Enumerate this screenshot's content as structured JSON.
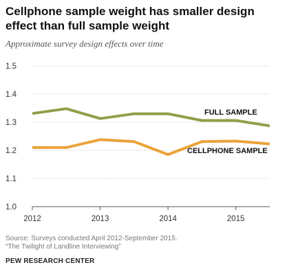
{
  "title": "Cellphone sample weight has smaller design effect than full sample weight",
  "subtitle": "Approximate survey design effects over time",
  "source_line1": "Source: Surveys conducted April 2012-September 2015.",
  "source_line2": "“The Twilight of Landline Interviewing”",
  "brand": "PEW RESEARCH CENTER",
  "chart_data": {
    "type": "line",
    "title": "Cellphone sample weight has smaller design effect than full sample weight",
    "subtitle": "Approximate survey design effects over time",
    "xlabel": "",
    "ylabel": "",
    "xlim": [
      2012.0,
      2015.5
    ],
    "ylim": [
      1.0,
      1.5
    ],
    "x_ticks": [
      2012,
      2013,
      2014,
      2015
    ],
    "y_ticks": [
      1.0,
      1.1,
      1.2,
      1.3,
      1.4,
      1.5
    ],
    "grid": "horizontal dotted",
    "legend": "direct labels on lines",
    "series": [
      {
        "name": "FULL SAMPLE",
        "color": "#8fa04a",
        "x": [
          2012.0,
          2012.5,
          2013.0,
          2013.5,
          2014.0,
          2014.5,
          2015.0,
          2015.5
        ],
        "values": [
          1.331,
          1.348,
          1.313,
          1.33,
          1.33,
          1.306,
          1.306,
          1.287
        ]
      },
      {
        "name": "CELLPHONE SAMPLE",
        "color": "#eba33a",
        "x": [
          2012.0,
          2012.5,
          2013.0,
          2013.5,
          2014.0,
          2014.5,
          2015.0,
          2015.5
        ],
        "values": [
          1.21,
          1.21,
          1.238,
          1.231,
          1.185,
          1.231,
          1.233,
          1.223
        ]
      }
    ]
  }
}
